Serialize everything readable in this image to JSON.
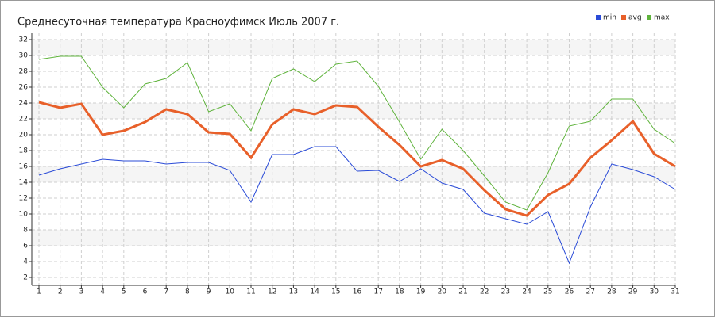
{
  "chart_data": {
    "type": "line",
    "title": "Среднесуточная температура Красноуфимск  Июль 2007 г.",
    "x": [
      1,
      2,
      3,
      4,
      5,
      6,
      7,
      8,
      9,
      10,
      11,
      12,
      13,
      14,
      15,
      16,
      17,
      18,
      19,
      20,
      21,
      22,
      23,
      24,
      25,
      26,
      27,
      28,
      29,
      30,
      31
    ],
    "series": [
      {
        "name": "min",
        "color": "#2a4bd7",
        "values": [
          14.9,
          15.7,
          16.3,
          16.9,
          16.7,
          16.7,
          16.3,
          16.5,
          16.5,
          15.5,
          11.5,
          17.5,
          17.5,
          18.5,
          18.5,
          15.4,
          15.5,
          14.1,
          15.7,
          13.9,
          13.1,
          10.1,
          9.4,
          8.7,
          10.3,
          3.8,
          10.9,
          16.3,
          15.6,
          14.7,
          13.1
        ]
      },
      {
        "name": "avg",
        "color": "#e8602a",
        "values": [
          24.1,
          23.4,
          23.9,
          20.0,
          20.5,
          21.6,
          23.2,
          22.6,
          20.3,
          20.1,
          17.1,
          21.3,
          23.2,
          22.6,
          23.7,
          23.5,
          21.0,
          18.7,
          16.0,
          16.8,
          15.7,
          13.0,
          10.6,
          9.8,
          12.4,
          13.8,
          17.1,
          19.3,
          21.7,
          17.6,
          16.0
        ]
      },
      {
        "name": "max",
        "color": "#5fb33c",
        "values": [
          29.5,
          29.9,
          29.9,
          26.0,
          23.4,
          26.4,
          27.1,
          29.1,
          22.9,
          23.9,
          20.5,
          27.1,
          28.3,
          26.7,
          28.9,
          29.3,
          26.1,
          21.6,
          16.9,
          20.7,
          18.0,
          14.8,
          11.5,
          10.5,
          15.2,
          21.1,
          21.7,
          24.5,
          24.5,
          20.7,
          18.9
        ]
      }
    ],
    "xlim": [
      1,
      31
    ],
    "xticks": [
      1,
      2,
      3,
      4,
      5,
      6,
      7,
      8,
      9,
      10,
      11,
      12,
      13,
      14,
      15,
      16,
      17,
      18,
      19,
      20,
      21,
      22,
      23,
      24,
      25,
      26,
      27,
      28,
      29,
      30,
      31
    ],
    "ylim": [
      1,
      32
    ],
    "yticks": [
      2,
      4,
      6,
      8,
      10,
      12,
      14,
      16,
      18,
      20,
      22,
      24,
      26,
      28,
      30,
      32
    ],
    "grid": true
  }
}
